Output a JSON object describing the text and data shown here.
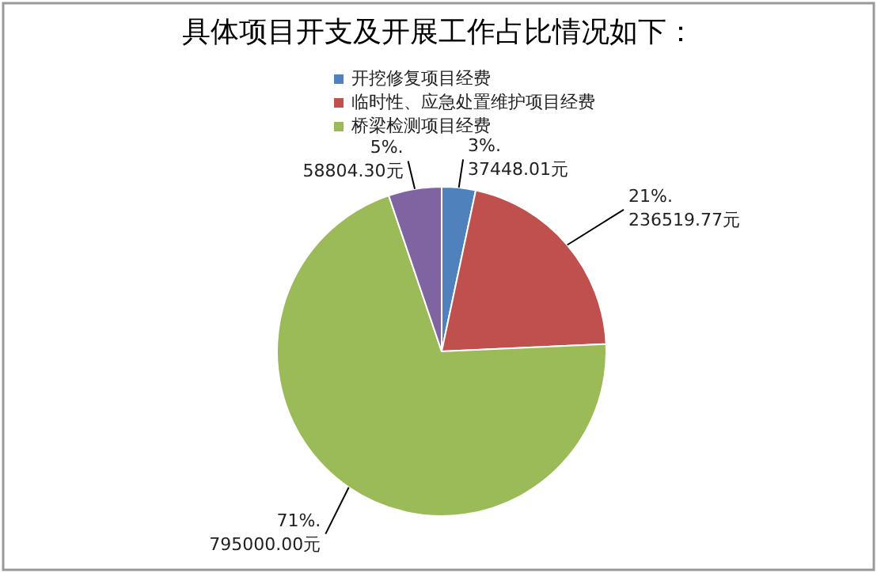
{
  "chart_data": {
    "type": "pie",
    "title": "具体项目开支及开展工作占比情况如下：",
    "categories": [
      "开挖修复项目经费",
      "临时性、应急处置维护项目经费",
      "桥梁检测项目经费",
      null
    ],
    "values": [
      37448.01,
      236519.77,
      795000.0,
      58804.3
    ],
    "colors": [
      "#4f81bd",
      "#c0504d",
      "#9bbb59",
      "#8064a2"
    ],
    "value_labels": [
      "3%.\n37448.01元",
      "21%.\n236519.77元",
      "71%.\n795000.00元",
      "5%.\n58804.30元"
    ],
    "legend": "top right"
  }
}
